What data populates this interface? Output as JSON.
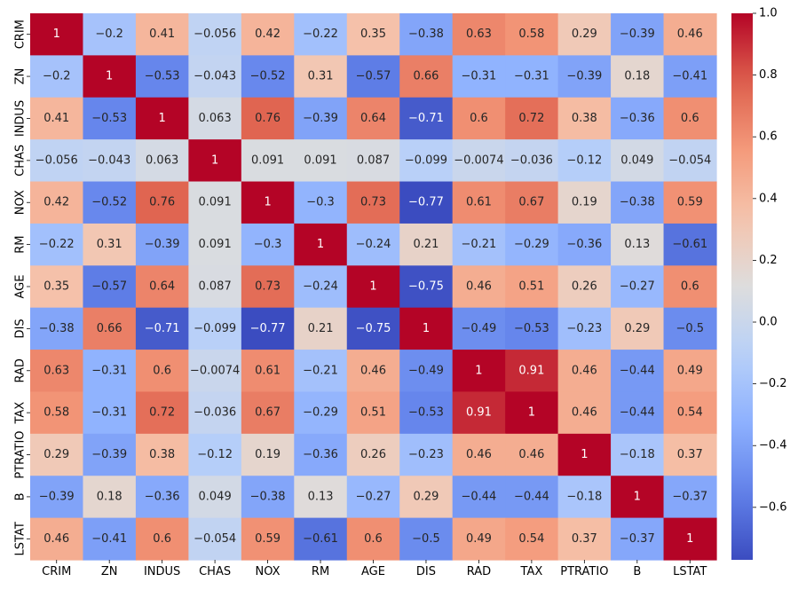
{
  "chart_data": {
    "type": "heatmap",
    "title": "",
    "xlabel": "",
    "ylabel": "",
    "x_categories": [
      "CRIM",
      "ZN",
      "INDUS",
      "CHAS",
      "NOX",
      "RM",
      "AGE",
      "DIS",
      "RAD",
      "TAX",
      "PTRATIO",
      "B",
      "LSTAT"
    ],
    "y_categories": [
      "CRIM",
      "ZN",
      "INDUS",
      "CHAS",
      "NOX",
      "RM",
      "AGE",
      "DIS",
      "RAD",
      "TAX",
      "PTRATIO",
      "B",
      "LSTAT"
    ],
    "values": [
      [
        1,
        -0.2,
        0.41,
        -0.056,
        0.42,
        -0.22,
        0.35,
        -0.38,
        0.63,
        0.58,
        0.29,
        -0.39,
        0.46
      ],
      [
        -0.2,
        1,
        -0.53,
        -0.043,
        -0.52,
        0.31,
        -0.57,
        0.66,
        -0.31,
        -0.31,
        -0.39,
        0.18,
        -0.41
      ],
      [
        0.41,
        -0.53,
        1,
        0.063,
        0.76,
        -0.39,
        0.64,
        -0.71,
        0.6,
        0.72,
        0.38,
        -0.36,
        0.6
      ],
      [
        -0.056,
        -0.043,
        0.063,
        1,
        0.091,
        0.091,
        0.087,
        -0.099,
        -0.0074,
        -0.036,
        -0.12,
        0.049,
        -0.054
      ],
      [
        0.42,
        -0.52,
        0.76,
        0.091,
        1,
        -0.3,
        0.73,
        -0.77,
        0.61,
        0.67,
        0.19,
        -0.38,
        0.59
      ],
      [
        -0.22,
        0.31,
        -0.39,
        0.091,
        -0.3,
        1,
        -0.24,
        0.21,
        -0.21,
        -0.29,
        -0.36,
        0.13,
        -0.61
      ],
      [
        0.35,
        -0.57,
        0.64,
        0.087,
        0.73,
        -0.24,
        1,
        -0.75,
        0.46,
        0.51,
        0.26,
        -0.27,
        0.6
      ],
      [
        -0.38,
        0.66,
        -0.71,
        -0.099,
        -0.77,
        0.21,
        -0.75,
        1,
        -0.49,
        -0.53,
        -0.23,
        0.29,
        -0.5
      ],
      [
        0.63,
        -0.31,
        0.6,
        -0.0074,
        0.61,
        -0.21,
        0.46,
        -0.49,
        1,
        0.91,
        0.46,
        -0.44,
        0.49
      ],
      [
        0.58,
        -0.31,
        0.72,
        -0.036,
        0.67,
        -0.29,
        0.51,
        -0.53,
        0.91,
        1,
        0.46,
        -0.44,
        0.54
      ],
      [
        0.29,
        -0.39,
        0.38,
        -0.12,
        0.19,
        -0.36,
        0.26,
        -0.23,
        0.46,
        0.46,
        1,
        -0.18,
        0.37
      ],
      [
        -0.39,
        0.18,
        -0.36,
        0.049,
        -0.38,
        0.13,
        -0.27,
        0.29,
        -0.44,
        -0.44,
        -0.18,
        1,
        -0.37
      ],
      [
        0.46,
        -0.41,
        0.6,
        -0.054,
        0.59,
        -0.61,
        0.6,
        -0.5,
        0.49,
        0.54,
        0.37,
        -0.37,
        1
      ]
    ],
    "colormap": "coolwarm",
    "colorbar": {
      "range": [
        -0.77,
        1.0
      ],
      "ticks": [
        1.0,
        0.8,
        0.6,
        0.4,
        0.2,
        0.0,
        -0.2,
        -0.4,
        -0.6
      ],
      "tick_labels": [
        "1.0",
        "0.8",
        "0.6",
        "0.4",
        "0.2",
        "0.0",
        "−0.2",
        "−0.4",
        "−0.6"
      ],
      "position": "right"
    },
    "grid": false,
    "annotated": true
  }
}
